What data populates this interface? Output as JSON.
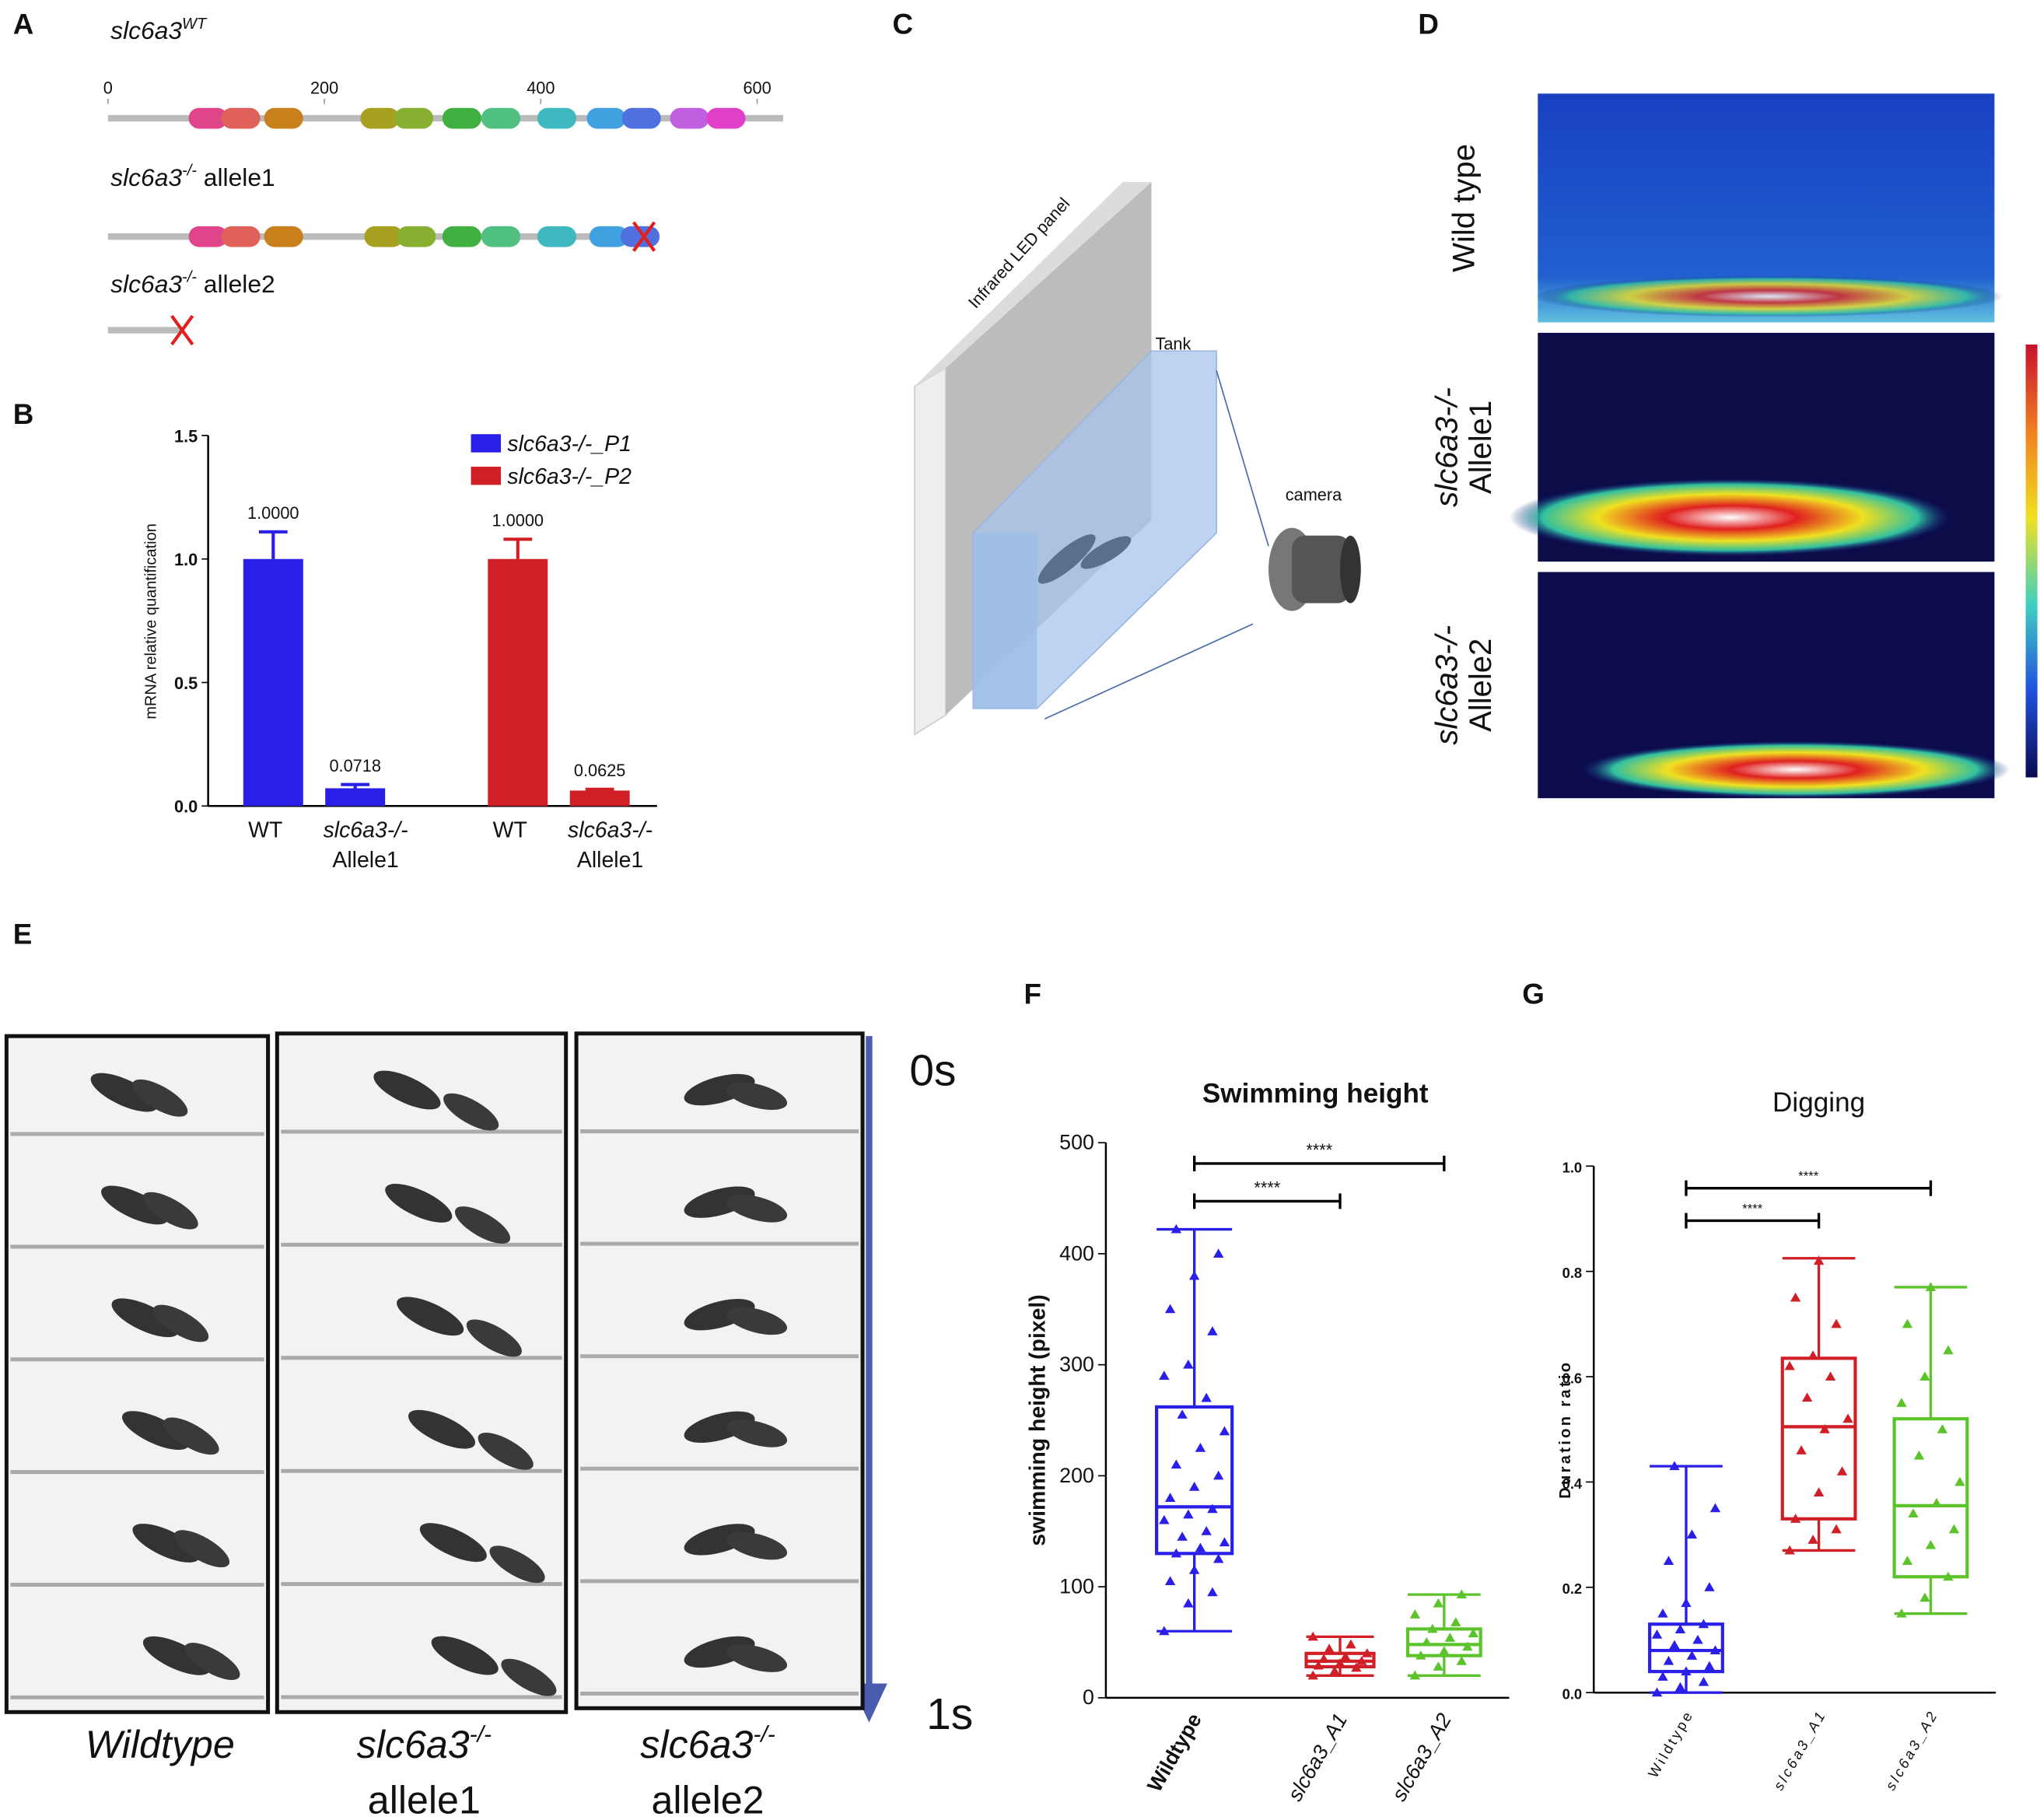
{
  "panel_letters": [
    "A",
    "B",
    "C",
    "D",
    "E",
    "F",
    "G"
  ],
  "panel_a": {
    "tracks": [
      {
        "gene": "slc6a3",
        "sup": "WT",
        "suffix": ""
      },
      {
        "gene": "slc6a3",
        "sup": "-/-",
        "suffix": " allele1"
      },
      {
        "gene": "slc6a3",
        "sup": "-/-",
        "suffix": " allele2"
      }
    ],
    "xlim": [
      0,
      600
    ],
    "xticks": [
      0,
      200,
      400,
      600
    ]
  },
  "panel_c": {
    "labels": [
      "Infrared LED panel",
      "Tank",
      "camera"
    ]
  },
  "panel_d": {
    "rows": [
      [
        "Wild type"
      ],
      [
        "slc6a3-/-",
        "Allele1"
      ],
      [
        "slc6a3-/-",
        "Allele2"
      ]
    ]
  },
  "panel_e": {
    "time_start": "0s",
    "time_end": "1s",
    "columns": [
      {
        "gene": "Wildtype",
        "sup": "",
        "line2": ""
      },
      {
        "gene": "slc6a3",
        "sup": "-/-",
        "line2": "allele1"
      },
      {
        "gene": "slc6a3",
        "sup": "-/-",
        "line2": "allele2"
      }
    ]
  },
  "chart_data": [
    {
      "type": "bar",
      "y_label": "mRNA relative quantification",
      "categories": [
        [
          "WT"
        ],
        [
          "slc6a3-/-",
          "Allele1"
        ]
      ],
      "series": [
        {
          "name": "slc6a3-/-_P1",
          "color": "#2a1fe6",
          "values": [
            1.0,
            0.0718
          ],
          "value_labels": [
            "1.0000",
            "0.0718"
          ],
          "errors": [
            0.11,
            0.015
          ]
        },
        {
          "name": "slc6a3-/-_P2",
          "color": "#d01f26",
          "values": [
            1.0,
            0.0625
          ],
          "value_labels": [
            "1.0000",
            "0.0625"
          ],
          "errors": [
            0.08,
            0.005
          ]
        }
      ],
      "ylim": [
        0,
        1.5
      ],
      "yticks": [
        {
          "value": 0,
          "label": "0.0"
        },
        {
          "value": 0.5,
          "label": "0.5"
        },
        {
          "value": 1.0,
          "label": "1.0"
        },
        {
          "value": 1.5,
          "label": "1.5"
        }
      ],
      "legend": "top-right"
    },
    {
      "type": "box",
      "title": "Swimming height",
      "y_label": "swimming height (pixel)",
      "categories": [
        "Wildtype",
        "slc6a3_A1",
        "slc6a3_A2"
      ],
      "boxes": [
        {
          "color": "#2a1fe6",
          "min": 60,
          "q1": 130,
          "median": 172,
          "q3": 262,
          "max": 422,
          "points": [
            60,
            85,
            95,
            105,
            115,
            125,
            130,
            135,
            140,
            145,
            150,
            160,
            165,
            170,
            180,
            190,
            200,
            210,
            225,
            240,
            255,
            270,
            290,
            300,
            330,
            350,
            380,
            400,
            422
          ]
        },
        {
          "color": "#d01f26",
          "min": 20,
          "q1": 28,
          "median": 33,
          "q3": 40,
          "max": 55,
          "points": [
            20,
            24,
            27,
            29,
            31,
            33,
            35,
            37,
            40,
            44,
            48,
            55
          ]
        },
        {
          "color": "#5cc42a",
          "min": 20,
          "q1": 38,
          "median": 48,
          "q3": 62,
          "max": 93,
          "points": [
            20,
            28,
            33,
            38,
            42,
            46,
            50,
            54,
            58,
            62,
            68,
            75,
            85,
            93
          ]
        }
      ],
      "annotations": [
        "****",
        "****"
      ],
      "ylim": [
        0,
        500
      ],
      "yticks": [
        0,
        100,
        200,
        300,
        400,
        500
      ]
    },
    {
      "type": "box",
      "title": "Digging",
      "y_label": "Duration ratio",
      "categories": [
        "Wildtype",
        "slc6a3_A1",
        "slc6a3_A2"
      ],
      "boxes": [
        {
          "color": "#2a1fe6",
          "min": 0.0,
          "q1": 0.04,
          "median": 0.08,
          "q3": 0.13,
          "max": 0.43,
          "points": [
            0.0,
            0.01,
            0.02,
            0.03,
            0.04,
            0.05,
            0.06,
            0.07,
            0.08,
            0.09,
            0.1,
            0.11,
            0.12,
            0.13,
            0.15,
            0.17,
            0.2,
            0.25,
            0.3,
            0.35,
            0.43
          ]
        },
        {
          "color": "#d01f26",
          "min": 0.27,
          "q1": 0.33,
          "median": 0.505,
          "q3": 0.635,
          "max": 0.825,
          "points": [
            0.27,
            0.29,
            0.31,
            0.33,
            0.38,
            0.42,
            0.46,
            0.5,
            0.52,
            0.56,
            0.6,
            0.62,
            0.64,
            0.7,
            0.75,
            0.82
          ]
        },
        {
          "color": "#5cc42a",
          "min": 0.15,
          "q1": 0.22,
          "median": 0.355,
          "q3": 0.52,
          "max": 0.77,
          "points": [
            0.15,
            0.18,
            0.22,
            0.25,
            0.28,
            0.31,
            0.34,
            0.36,
            0.4,
            0.45,
            0.5,
            0.55,
            0.6,
            0.65,
            0.7,
            0.77
          ]
        }
      ],
      "annotations": [
        "****",
        "****"
      ],
      "ylim": [
        0,
        1.0
      ],
      "yticks": [
        {
          "value": 0,
          "label": "0.0"
        },
        {
          "value": 0.2,
          "label": "0.2"
        },
        {
          "value": 0.4,
          "label": "0.4"
        },
        {
          "value": 0.6,
          "label": "0.6"
        },
        {
          "value": 0.8,
          "label": "0.8"
        },
        {
          "value": 1.0,
          "label": "1.0"
        }
      ]
    }
  ]
}
